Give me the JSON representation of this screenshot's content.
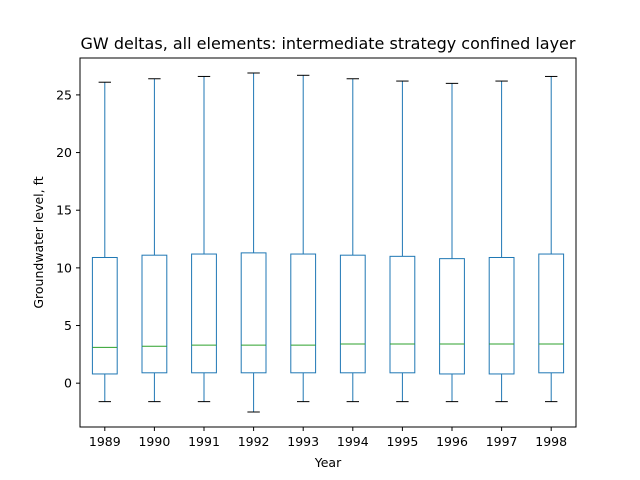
{
  "chart_data": {
    "type": "box",
    "title": "GW deltas, all elements: intermediate strategy confined layer",
    "xlabel": "Year",
    "ylabel": "Groundwater level, ft",
    "ylim": [
      -3.8,
      28.2
    ],
    "yticks": [
      0,
      5,
      10,
      15,
      20,
      25
    ],
    "grid": false,
    "categories": [
      "1989",
      "1990",
      "1991",
      "1992",
      "1993",
      "1994",
      "1995",
      "1996",
      "1997",
      "1998"
    ],
    "boxes": [
      {
        "whisker_low": -1.6,
        "q1": 0.8,
        "median": 3.1,
        "q3": 10.9,
        "whisker_high": 26.1
      },
      {
        "whisker_low": -1.6,
        "q1": 0.9,
        "median": 3.2,
        "q3": 11.1,
        "whisker_high": 26.4
      },
      {
        "whisker_low": -1.6,
        "q1": 0.9,
        "median": 3.3,
        "q3": 11.2,
        "whisker_high": 26.6
      },
      {
        "whisker_low": -2.5,
        "q1": 0.9,
        "median": 3.3,
        "q3": 11.3,
        "whisker_high": 26.9
      },
      {
        "whisker_low": -1.6,
        "q1": 0.9,
        "median": 3.3,
        "q3": 11.2,
        "whisker_high": 26.7
      },
      {
        "whisker_low": -1.6,
        "q1": 0.9,
        "median": 3.4,
        "q3": 11.1,
        "whisker_high": 26.4
      },
      {
        "whisker_low": -1.6,
        "q1": 0.9,
        "median": 3.4,
        "q3": 11.0,
        "whisker_high": 26.2
      },
      {
        "whisker_low": -1.6,
        "q1": 0.8,
        "median": 3.4,
        "q3": 10.8,
        "whisker_high": 26.0
      },
      {
        "whisker_low": -1.6,
        "q1": 0.8,
        "median": 3.4,
        "q3": 10.9,
        "whisker_high": 26.2
      },
      {
        "whisker_low": -1.6,
        "q1": 0.9,
        "median": 3.4,
        "q3": 11.2,
        "whisker_high": 26.6
      }
    ],
    "colors": {
      "box": "#1f77b4",
      "median": "#2ca02c",
      "cap": "#000000",
      "axes": "#000000"
    }
  }
}
